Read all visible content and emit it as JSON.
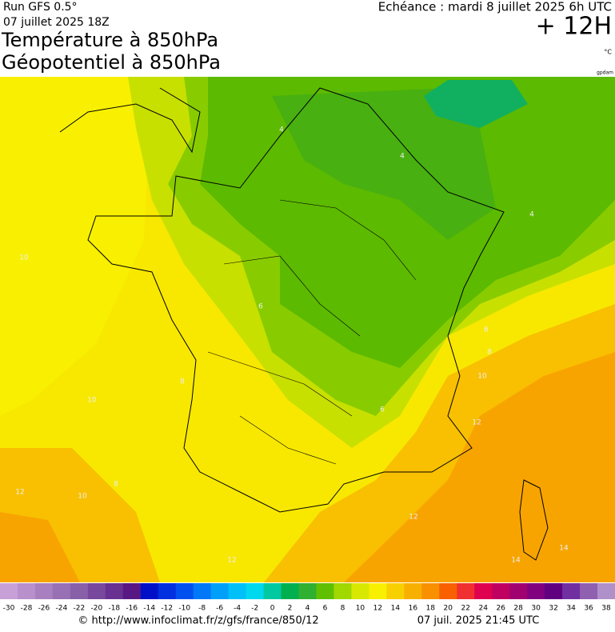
{
  "header": {
    "run": "Run GFS 0.5°",
    "run_date": "07 juillet 2025 18Z",
    "title1": "Température à 850hPa",
    "title2": "Géopotentiel à 850hPa",
    "echeance": "Echéance : mardi 8 juillet 2025 6h UTC",
    "lead": "+ 12H",
    "unit": "°C",
    "unit2": "gpdam"
  },
  "map": {
    "contour_labels": [
      4,
      4,
      4,
      6,
      8,
      10,
      12,
      10,
      8,
      10,
      8,
      10,
      12,
      12,
      12,
      14,
      14,
      6,
      6
    ]
  },
  "legend": {
    "ticks": [
      -30,
      -28,
      -26,
      -24,
      -22,
      -20,
      -18,
      -16,
      -14,
      -12,
      -10,
      -8,
      -6,
      -4,
      -2,
      0,
      2,
      4,
      6,
      8,
      10,
      12,
      14,
      16,
      18,
      20,
      22,
      24,
      26,
      28,
      30,
      32,
      34,
      36,
      38
    ],
    "colors": [
      "#c8a0d8",
      "#b890cc",
      "#a880c0",
      "#9870b4",
      "#8860a8",
      "#78489c",
      "#683090",
      "#581884",
      "#0010c8",
      "#0030e0",
      "#0050f0",
      "#0078f8",
      "#00a0f8",
      "#00c0f8",
      "#00d8f0",
      "#00c8a0",
      "#00b050",
      "#30b030",
      "#60c000",
      "#a0d800",
      "#d8e800",
      "#f8f000",
      "#f8d000",
      "#f8b000",
      "#f89000",
      "#f86000",
      "#f03030",
      "#e00050",
      "#c00060",
      "#a00070",
      "#800080",
      "#600080",
      "#7030a0",
      "#9060b0",
      "#b090c8"
    ]
  },
  "footer": {
    "url": "© http://www.infoclimat.fr/z/gfs/france/850/12",
    "stamp": "07 juil. 2025 21:45 UTC"
  }
}
